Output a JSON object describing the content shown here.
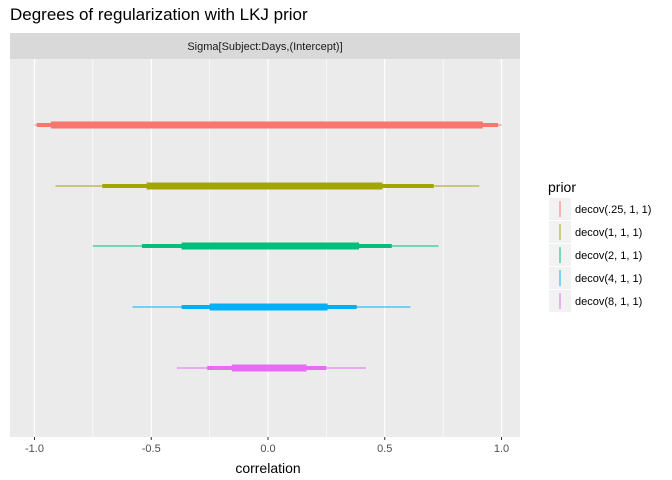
{
  "chart_data": {
    "type": "interval",
    "title": "Degrees of regularization with LKJ prior",
    "facet_label": "Sigma[Subject:Days,(Intercept)]",
    "xlabel": "correlation",
    "xlim": [
      -1.05,
      1.05
    ],
    "xticks": [
      -1.0,
      -0.5,
      0.0,
      0.5,
      1.0
    ],
    "xtick_labels": [
      "-1.0",
      "-0.5",
      "0.0",
      "0.5",
      "1.0"
    ],
    "legend": {
      "title": "prior",
      "position": "right"
    },
    "series": [
      {
        "name": "decov(.25, 1, 1)",
        "color": "#F8766D",
        "outer": [
          -1.0,
          1.0
        ],
        "mid": [
          -0.99,
          0.985
        ],
        "inner": [
          -0.93,
          0.92
        ]
      },
      {
        "name": "decov(1, 1, 1)",
        "color": "#A3A500",
        "outer": [
          -0.91,
          0.905
        ],
        "mid": [
          -0.71,
          0.71
        ],
        "inner": [
          -0.52,
          0.49
        ]
      },
      {
        "name": "decov(2, 1, 1)",
        "color": "#00BF7D",
        "outer": [
          -0.75,
          0.73
        ],
        "mid": [
          -0.54,
          0.53
        ],
        "inner": [
          -0.37,
          0.39
        ]
      },
      {
        "name": "decov(4, 1, 1)",
        "color": "#00B0F6",
        "outer": [
          -0.58,
          0.61
        ],
        "mid": [
          -0.37,
          0.38
        ],
        "inner": [
          -0.25,
          0.255
        ]
      },
      {
        "name": "decov(8, 1, 1)",
        "color": "#E76BF3",
        "outer": [
          -0.39,
          0.42
        ],
        "mid": [
          -0.26,
          0.25
        ],
        "inner": [
          -0.155,
          0.165
        ]
      }
    ]
  }
}
